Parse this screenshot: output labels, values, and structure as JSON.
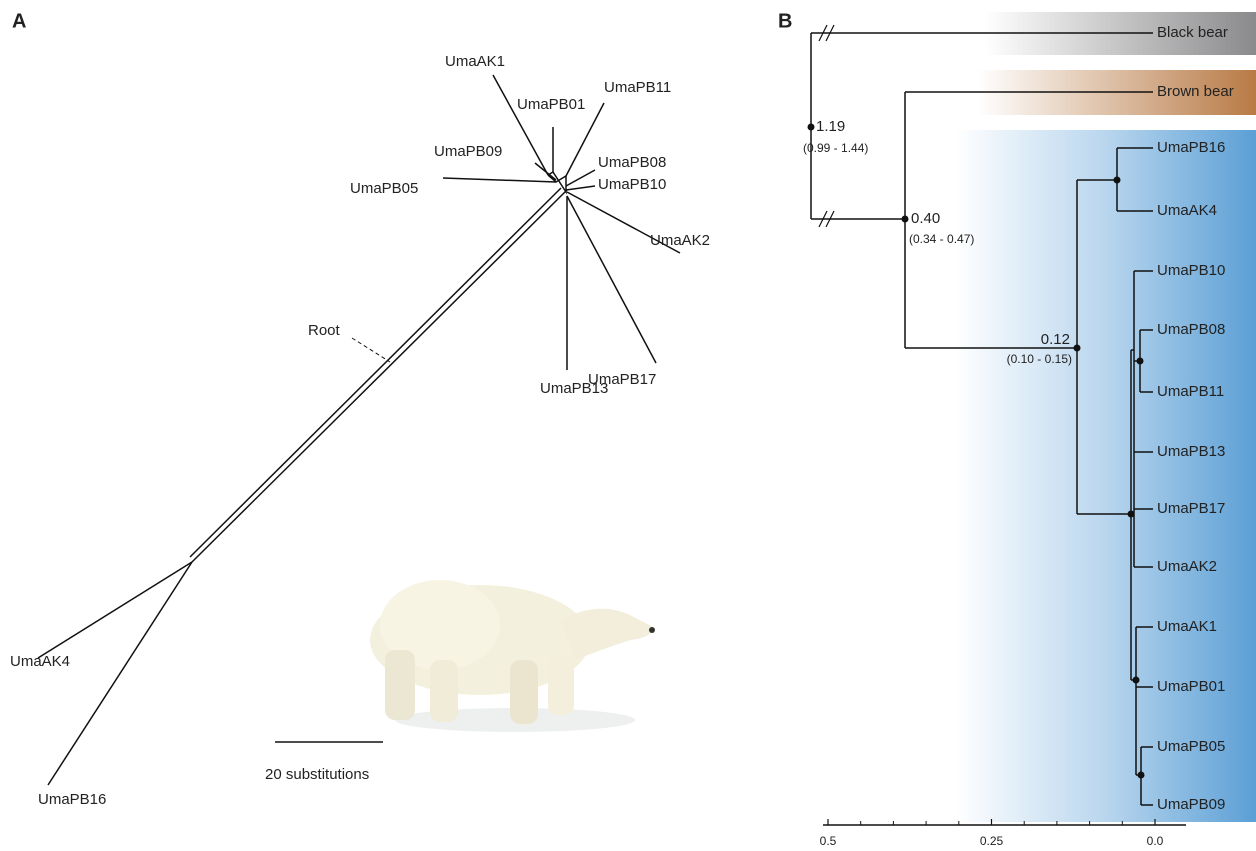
{
  "panel_a": {
    "label": "A",
    "tips": [
      "UmaAK1",
      "UmaPB11",
      "UmaPB01",
      "UmaPB09",
      "UmaPB08",
      "UmaPB10",
      "UmaPB05",
      "UmaAK2",
      "UmaPB13",
      "UmaPB17",
      "UmaAK4",
      "UmaPB16"
    ],
    "root": "Root",
    "scale_bar": "20 substitutions"
  },
  "panel_b": {
    "label": "B",
    "outgroups": [
      "Black bear",
      "Brown bear"
    ],
    "tips": [
      "UmaPB16",
      "UmaAK4",
      "UmaPB10",
      "UmaPB08",
      "UmaPB11",
      "UmaPB13",
      "UmaPB17",
      "UmaAK2",
      "UmaAK1",
      "UmaPB01",
      "UmaPB05",
      "UmaPB09"
    ],
    "nodes": [
      {
        "age": "1.19",
        "interval": "(0.99 - 1.44)"
      },
      {
        "age": "0.40",
        "interval": "(0.34 - 0.47)"
      },
      {
        "age": "0.12",
        "interval": "(0.10 - 0.15)"
      }
    ],
    "axis_ticks": [
      0.5,
      0.25,
      {
        "value": 0,
        "label": "0.0"
      }
    ]
  }
}
